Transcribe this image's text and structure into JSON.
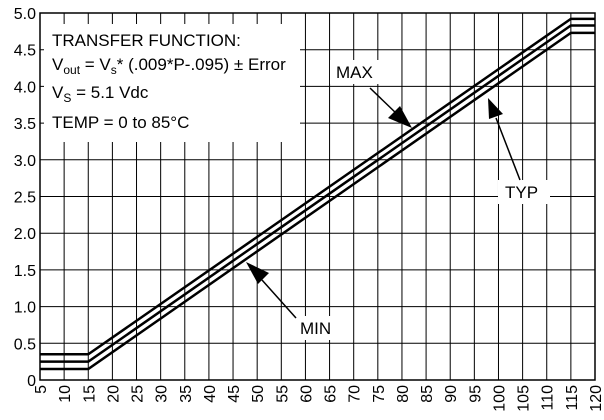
{
  "chart_data": {
    "type": "line",
    "x": [
      5,
      15,
      115,
      120
    ],
    "series": [
      {
        "name": "MAX",
        "color": "#000000",
        "values": [
          0.35,
          0.35,
          4.92,
          4.92
        ]
      },
      {
        "name": "TYP",
        "color": "#000000",
        "values": [
          0.25,
          0.25,
          4.83,
          4.83
        ]
      },
      {
        "name": "MIN",
        "color": "#000000",
        "values": [
          0.15,
          0.15,
          4.73,
          4.73
        ]
      }
    ],
    "xlim": [
      5,
      120
    ],
    "xticks": [
      5,
      10,
      15,
      20,
      25,
      30,
      35,
      40,
      45,
      50,
      55,
      60,
      65,
      70,
      75,
      80,
      85,
      90,
      95,
      100,
      105,
      110,
      115,
      120
    ],
    "ylim": [
      0,
      5
    ],
    "yticks": [
      0,
      0.5,
      {
        "value": 1,
        "label": "1.0"
      },
      1.5,
      {
        "value": 2,
        "label": "2.0"
      },
      2.5,
      {
        "value": 3,
        "label": "3.0"
      },
      3.5,
      {
        "value": 4,
        "label": "4.0"
      },
      4.5,
      {
        "value": 5,
        "label": "5.0"
      }
    ],
    "grid": true,
    "annotations": {
      "title": "TRANSFER FUNCTION:",
      "formula": [
        "V",
        "out",
        " = V",
        "s",
        "* (.009*P-.095) ± Error"
      ],
      "supply": [
        "V",
        "S",
        " = 5.1 Vdc"
      ],
      "temp": "TEMP = 0 to 85°C"
    }
  }
}
